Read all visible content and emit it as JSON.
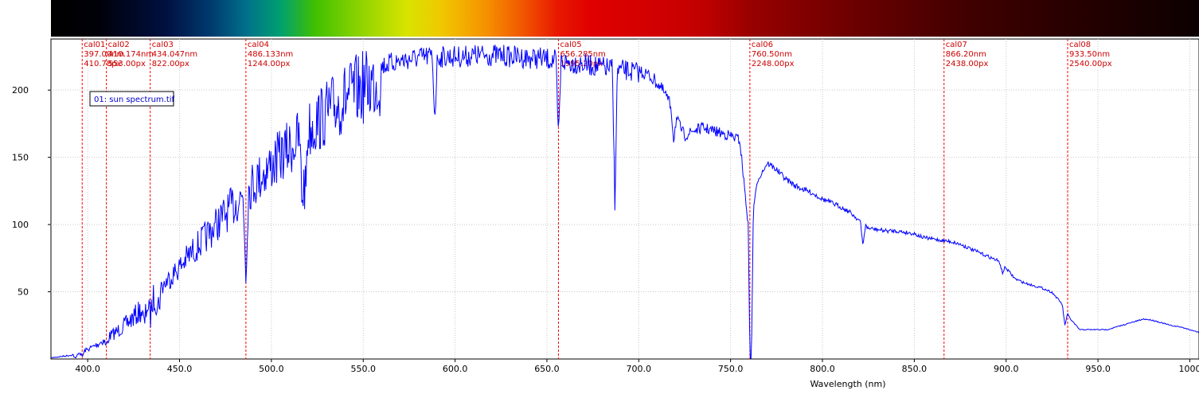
{
  "chart_data": {
    "type": "line",
    "xlabel": "Wavelength (nm)",
    "ylabel": "",
    "xlim": [
      380,
      1005
    ],
    "ylim": [
      0,
      238
    ],
    "x_ticks": [
      "400.0",
      "450.0",
      "500.0",
      "550.0",
      "600.0",
      "650.0",
      "700.0",
      "750.0",
      "800.0",
      "850.0",
      "900.0",
      "950.0",
      "1000"
    ],
    "y_ticks": [
      "50",
      "100",
      "150",
      "200"
    ],
    "grid": true,
    "legend": {
      "label": "01: sun spectrum.tif",
      "placement": "top-left"
    },
    "calibration_lines": [
      {
        "name": "cal01",
        "wavelength": 397.0,
        "nm_text": "397.00nm",
        "px_text": "410.78px"
      },
      {
        "name": "cal02",
        "wavelength": 410.174,
        "nm_text": "410.174nm",
        "px_text": "553.00px"
      },
      {
        "name": "cal03",
        "wavelength": 434.047,
        "nm_text": "434.047nm",
        "px_text": "822.00px"
      },
      {
        "name": "cal04",
        "wavelength": 486.133,
        "nm_text": "486.133nm",
        "px_text": "1244.00px"
      },
      {
        "name": "cal05",
        "wavelength": 656.285,
        "nm_text": "656.285nm",
        "px_text": "1995.20px"
      },
      {
        "name": "cal06",
        "wavelength": 760.5,
        "nm_text": "760.50nm",
        "px_text": "2248.00px"
      },
      {
        "name": "cal07",
        "wavelength": 866.2,
        "nm_text": "866.20nm",
        "px_text": "2438.00px"
      },
      {
        "name": "cal08",
        "wavelength": 933.5,
        "nm_text": "933.50nm",
        "px_text": "2540.00px"
      }
    ],
    "series": [
      {
        "color": "#0000ff",
        "x": [
          380,
          385,
          390,
          395,
          400,
          405,
          410,
          415,
          420,
          425,
          430,
          435,
          440,
          445,
          450,
          455,
          460,
          465,
          470,
          475,
          480,
          485,
          490,
          495,
          500,
          505,
          510,
          515,
          520,
          525,
          530,
          535,
          540,
          545,
          550,
          555,
          560,
          565,
          570,
          575,
          580,
          585,
          590,
          595,
          600,
          605,
          610,
          615,
          620,
          625,
          630,
          635,
          640,
          645,
          650,
          655,
          660,
          665,
          670,
          675,
          680,
          685,
          690,
          695,
          700,
          705,
          710,
          715,
          720,
          725,
          730,
          735,
          740,
          745,
          750,
          755,
          760,
          765,
          770,
          775,
          780,
          785,
          790,
          795,
          800,
          805,
          810,
          815,
          820,
          825,
          830,
          835,
          840,
          845,
          850,
          855,
          860,
          865,
          870,
          875,
          880,
          885,
          890,
          895,
          900,
          905,
          910,
          915,
          920,
          925,
          930,
          935,
          940,
          945,
          950,
          955,
          960,
          965,
          970,
          975,
          980,
          985,
          990,
          995,
          1000,
          1005
        ],
        "y": [
          1,
          2,
          3,
          5,
          8,
          12,
          17,
          22,
          28,
          35,
          42,
          49,
          57,
          65,
          73,
          82,
          90,
          98,
          107,
          115,
          123,
          131,
          139,
          147,
          154,
          161,
          168,
          175,
          182,
          189,
          195,
          201,
          207,
          212,
          216,
          219,
          222,
          224,
          226,
          227,
          228,
          229,
          229,
          229,
          229,
          229,
          230,
          230,
          230,
          230,
          229,
          229,
          228,
          228,
          227,
          226,
          225,
          224,
          223,
          222,
          221,
          220,
          219,
          218,
          217,
          214,
          208,
          198,
          182,
          168,
          172,
          174,
          172,
          170,
          168,
          165,
          95,
          135,
          147,
          142,
          135,
          130,
          127,
          124,
          120,
          117,
          114,
          110,
          104,
          98,
          97,
          96,
          96,
          95,
          94,
          91,
          90,
          89,
          88,
          86,
          83,
          80,
          77,
          74,
          68,
          60,
          57,
          55,
          53,
          50,
          42,
          30,
          22,
          22,
          22,
          22,
          24,
          26,
          28,
          30,
          29,
          27,
          25,
          24,
          22,
          20
        ]
      }
    ],
    "absorption_lines": [
      {
        "x": 393.4,
        "depth": 4
      },
      {
        "x": 397.0,
        "depth": 4
      },
      {
        "x": 410.2,
        "depth": 6
      },
      {
        "x": 430.8,
        "depth": 14
      },
      {
        "x": 434.0,
        "depth": 12
      },
      {
        "x": 438.3,
        "depth": 10
      },
      {
        "x": 486.1,
        "depth": 60
      },
      {
        "x": 516.7,
        "depth": 50
      },
      {
        "x": 518.4,
        "depth": 48
      },
      {
        "x": 589.0,
        "depth": 46
      },
      {
        "x": 656.3,
        "depth": 60
      },
      {
        "x": 687.0,
        "depth": 98
      },
      {
        "x": 719.0,
        "depth": 20
      },
      {
        "x": 761.0,
        "depth": 140
      },
      {
        "x": 822.0,
        "depth": 16
      },
      {
        "x": 898.0,
        "depth": 6
      },
      {
        "x": 932.0,
        "depth": 12
      }
    ]
  }
}
